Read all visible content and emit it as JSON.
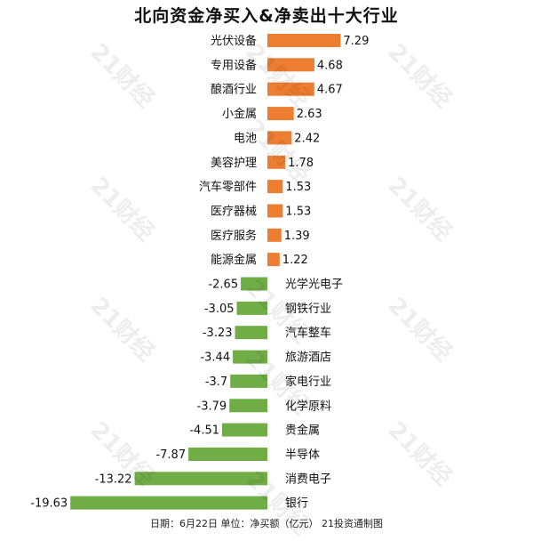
{
  "chart_data": {
    "type": "bar",
    "orientation": "horizontal",
    "title": "北向资金净买入&净卖出十大行业",
    "categories": [
      "光伏设备",
      "专用设备",
      "酿酒行业",
      "小金属",
      "电池",
      "美容护理",
      "汽车零部件",
      "医疗器械",
      "医疗服务",
      "能源金属",
      "光学光电子",
      "钢铁行业",
      "汽车整车",
      "旅游酒店",
      "家电行业",
      "化学原料",
      "贵金属",
      "半导体",
      "消费电子",
      "银行"
    ],
    "values": [
      7.29,
      4.68,
      4.67,
      2.63,
      2.42,
      1.78,
      1.53,
      1.53,
      1.39,
      1.22,
      -2.65,
      -3.05,
      -3.23,
      -3.44,
      -3.7,
      -3.79,
      -4.51,
      -7.87,
      -13.22,
      -19.63
    ],
    "value_labels": [
      "7.29",
      "4.68",
      "4.67",
      "2.63",
      "2.42",
      "1.78",
      "1.53",
      "1.53",
      "1.39",
      "1.22",
      "-2.65",
      "-3.05",
      "-3.23",
      "-3.44",
      "-3.7",
      "-3.79",
      "-4.51",
      "-7.87",
      "-13.22",
      "-19.63"
    ],
    "colors": {
      "positive": "#ED7D31",
      "negative": "#70AD47"
    },
    "xlim": [
      -19.63,
      7.29
    ],
    "grid": false,
    "legend": "none"
  },
  "footer": "日期：6月22日 单位：净买额（亿元） 21投资通制图",
  "watermark": "21财经"
}
